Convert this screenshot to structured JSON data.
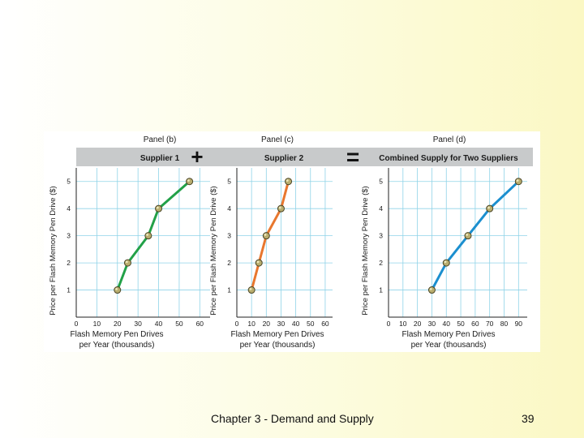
{
  "header": {
    "plus_symbol": "+",
    "equals_symbol": "="
  },
  "chart_data": [
    {
      "type": "line",
      "panel": "Panel (b)",
      "title": "Supplier 1",
      "xlabel": "Flash Memory Pen Drives per Year (thousands)",
      "xlabel_lines": [
        "Flash Memory Pen Drives",
        "per Year (thousands)"
      ],
      "ylabel": "Price per Flash Memory Pen Drive ($)",
      "x_ticks": [
        0,
        10,
        20,
        30,
        40,
        50,
        60
      ],
      "y_ticks": [
        1,
        2,
        3,
        4,
        5
      ],
      "xlim": [
        0,
        65
      ],
      "ylim": [
        0,
        5.5
      ],
      "grid": true,
      "color": "#22a148",
      "points": [
        {
          "x": 20,
          "y": 1
        },
        {
          "x": 25,
          "y": 2
        },
        {
          "x": 35,
          "y": 3
        },
        {
          "x": 40,
          "y": 4
        },
        {
          "x": 55,
          "y": 5
        }
      ]
    },
    {
      "type": "line",
      "panel": "Panel (c)",
      "title": "Supplier 2",
      "xlabel": "Flash Memory Pen Drives per Year (thousands)",
      "xlabel_lines": [
        "Flash Memory Pen Drives",
        "per Year (thousands)"
      ],
      "ylabel": "Price per Flash Memory Pen Drive ($)",
      "x_ticks": [
        0,
        10,
        20,
        30,
        40,
        50,
        60
      ],
      "y_ticks": [
        1,
        2,
        3,
        4,
        5
      ],
      "xlim": [
        0,
        65
      ],
      "ylim": [
        0,
        5.5
      ],
      "grid": true,
      "color": "#e8772e",
      "points": [
        {
          "x": 10,
          "y": 1
        },
        {
          "x": 15,
          "y": 2
        },
        {
          "x": 20,
          "y": 3
        },
        {
          "x": 30,
          "y": 4
        },
        {
          "x": 35,
          "y": 5
        }
      ]
    },
    {
      "type": "line",
      "panel": "Panel (d)",
      "title": "Combined Supply for Two Suppliers",
      "xlabel": "Flash Memory Pen Drives per Year (thousands)",
      "xlabel_lines": [
        "Flash Memory Pen Drives",
        "per Year (thousands)"
      ],
      "ylabel": "Price per Flash Memory Pen Drive ($)",
      "x_ticks": [
        0,
        10,
        20,
        30,
        40,
        50,
        60,
        70,
        80,
        90
      ],
      "y_ticks": [
        1,
        2,
        3,
        4,
        5
      ],
      "xlim": [
        0,
        96
      ],
      "ylim": [
        0,
        5.5
      ],
      "grid": true,
      "color": "#1b8fcf",
      "points": [
        {
          "x": 30,
          "y": 1
        },
        {
          "x": 40,
          "y": 2
        },
        {
          "x": 55,
          "y": 3
        },
        {
          "x": 70,
          "y": 4
        },
        {
          "x": 90,
          "y": 5
        }
      ]
    }
  ],
  "footer": {
    "chapter": "Chapter 3 - Demand and Supply",
    "page_number": "39"
  }
}
